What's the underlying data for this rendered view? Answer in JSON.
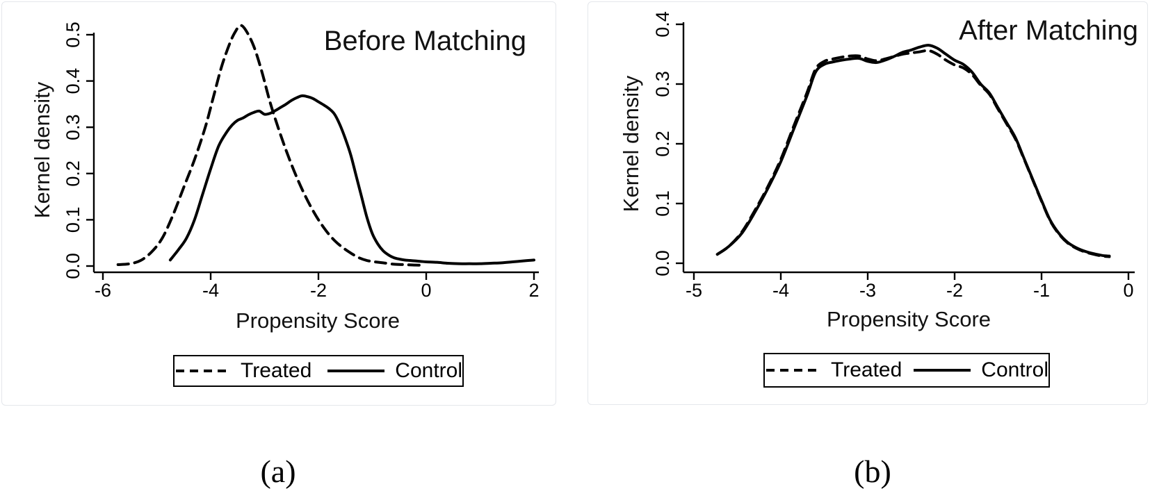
{
  "figure": {
    "captions": {
      "a": "(a)",
      "b": "(b)"
    }
  },
  "chart_data": [
    {
      "type": "line",
      "title": "Before Matching",
      "xlabel": "Propensity Score",
      "ylabel": "Kernel density",
      "xlim": [
        -6.17,
        2.09
      ],
      "ylim": [
        0,
        0.53
      ],
      "xticks": [
        -6,
        -4,
        -2,
        0,
        2
      ],
      "xticklabels": [
        "-6",
        "-4",
        "-2",
        "0",
        "2"
      ],
      "yticks": [
        0.0,
        0.1,
        0.2,
        0.3,
        0.4,
        0.5
      ],
      "yticklabels": [
        "0.0",
        "0.1",
        "0.2",
        "0.3",
        "0.4",
        "0.5"
      ],
      "grid": false,
      "legend": {
        "position": "bottom-center",
        "entries": [
          {
            "label": "Treated",
            "style": "dashed"
          },
          {
            "label": "Control",
            "style": "solid"
          }
        ]
      },
      "series": [
        {
          "name": "Treated",
          "style": "dashed",
          "x": [
            -5.72,
            -5.5,
            -5.3,
            -5.1,
            -4.9,
            -4.7,
            -4.5,
            -4.3,
            -4.1,
            -3.95,
            -3.8,
            -3.65,
            -3.55,
            -3.45,
            -3.35,
            -3.2,
            -3.05,
            -2.9,
            -2.75,
            -2.6,
            -2.45,
            -2.3,
            -2.15,
            -2.0,
            -1.85,
            -1.7,
            -1.55,
            -1.4,
            -1.25,
            -1.1,
            -0.95,
            -0.8,
            -0.6,
            -0.4,
            -0.2,
            -0.05
          ],
          "y": [
            0.003,
            0.005,
            0.012,
            0.03,
            0.06,
            0.11,
            0.17,
            0.23,
            0.3,
            0.365,
            0.43,
            0.48,
            0.505,
            0.52,
            0.51,
            0.475,
            0.42,
            0.355,
            0.3,
            0.25,
            0.205,
            0.165,
            0.13,
            0.1,
            0.075,
            0.055,
            0.04,
            0.028,
            0.018,
            0.012,
            0.009,
            0.007,
            0.004,
            0.003,
            0.002,
            0.002
          ]
        },
        {
          "name": "Control",
          "style": "solid",
          "x": [
            -4.75,
            -4.6,
            -4.45,
            -4.3,
            -4.15,
            -4.0,
            -3.85,
            -3.7,
            -3.6,
            -3.5,
            -3.4,
            -3.3,
            -3.2,
            -3.1,
            -3.0,
            -2.9,
            -2.8,
            -2.7,
            -2.6,
            -2.5,
            -2.4,
            -2.3,
            -2.2,
            -2.1,
            -2.0,
            -1.9,
            -1.8,
            -1.7,
            -1.6,
            -1.5,
            -1.4,
            -1.3,
            -1.2,
            -1.1,
            -1.0,
            -0.9,
            -0.8,
            -0.7,
            -0.6,
            -0.5,
            -0.4,
            -0.3,
            -0.2,
            -0.1,
            0.0,
            0.2,
            0.4,
            0.6,
            0.8,
            1.0,
            1.2,
            1.4,
            1.6,
            1.8,
            2.0
          ],
          "y": [
            0.013,
            0.035,
            0.06,
            0.1,
            0.155,
            0.21,
            0.26,
            0.29,
            0.305,
            0.315,
            0.32,
            0.327,
            0.332,
            0.335,
            0.328,
            0.33,
            0.336,
            0.343,
            0.35,
            0.358,
            0.364,
            0.368,
            0.366,
            0.362,
            0.355,
            0.348,
            0.34,
            0.328,
            0.305,
            0.275,
            0.24,
            0.195,
            0.15,
            0.105,
            0.07,
            0.048,
            0.033,
            0.024,
            0.018,
            0.015,
            0.013,
            0.012,
            0.011,
            0.01,
            0.009,
            0.008,
            0.006,
            0.005,
            0.005,
            0.005,
            0.006,
            0.007,
            0.009,
            0.011,
            0.013
          ]
        }
      ]
    },
    {
      "type": "line",
      "title": "After Matching",
      "xlabel": "Propensity Score",
      "ylabel": "Kernel density",
      "xlim": [
        -5.12,
        0.07
      ],
      "ylim": [
        0,
        0.4
      ],
      "xticks": [
        -5,
        -4,
        -3,
        -2,
        -1,
        0
      ],
      "xticklabels": [
        "-5",
        "-4",
        "-3",
        "-2",
        "-1",
        "0"
      ],
      "yticks": [
        0.0,
        0.1,
        0.2,
        0.3,
        0.4
      ],
      "yticklabels": [
        "0.0",
        "0.1",
        "0.2",
        "0.3",
        "0.4"
      ],
      "grid": false,
      "legend": {
        "position": "bottom-center",
        "entries": [
          {
            "label": "Treated",
            "style": "dashed"
          },
          {
            "label": "Control",
            "style": "solid"
          }
        ]
      },
      "series": [
        {
          "name": "Treated",
          "style": "dashed",
          "x": [
            -4.73,
            -4.6,
            -4.45,
            -4.3,
            -4.15,
            -4.0,
            -3.85,
            -3.7,
            -3.6,
            -3.5,
            -3.4,
            -3.3,
            -3.2,
            -3.1,
            -3.0,
            -2.9,
            -2.8,
            -2.7,
            -2.6,
            -2.5,
            -2.4,
            -2.3,
            -2.2,
            -2.1,
            -2.0,
            -1.9,
            -1.8,
            -1.7,
            -1.6,
            -1.5,
            -1.4,
            -1.3,
            -1.2,
            -1.1,
            -1.0,
            -0.9,
            -0.8,
            -0.7,
            -0.6,
            -0.5,
            -0.4,
            -0.3,
            -0.22
          ],
          "y": [
            0.015,
            0.028,
            0.052,
            0.088,
            0.128,
            0.174,
            0.23,
            0.285,
            0.325,
            0.338,
            0.342,
            0.345,
            0.347,
            0.347,
            0.342,
            0.339,
            0.342,
            0.346,
            0.35,
            0.352,
            0.354,
            0.356,
            0.35,
            0.34,
            0.332,
            0.327,
            0.316,
            0.298,
            0.283,
            0.258,
            0.233,
            0.208,
            0.174,
            0.139,
            0.104,
            0.071,
            0.049,
            0.034,
            0.025,
            0.019,
            0.015,
            0.012,
            0.011
          ]
        },
        {
          "name": "Control",
          "style": "solid",
          "x": [
            -4.73,
            -4.6,
            -4.45,
            -4.3,
            -4.15,
            -4.0,
            -3.85,
            -3.7,
            -3.6,
            -3.5,
            -3.4,
            -3.3,
            -3.2,
            -3.1,
            -3.0,
            -2.9,
            -2.8,
            -2.7,
            -2.6,
            -2.5,
            -2.4,
            -2.3,
            -2.2,
            -2.1,
            -2.0,
            -1.9,
            -1.8,
            -1.7,
            -1.6,
            -1.5,
            -1.4,
            -1.3,
            -1.2,
            -1.1,
            -1.0,
            -0.9,
            -0.8,
            -0.7,
            -0.6,
            -0.5,
            -0.4,
            -0.3,
            -0.22
          ],
          "y": [
            0.015,
            0.028,
            0.05,
            0.085,
            0.125,
            0.17,
            0.225,
            0.28,
            0.32,
            0.333,
            0.337,
            0.34,
            0.342,
            0.343,
            0.338,
            0.336,
            0.34,
            0.346,
            0.353,
            0.357,
            0.362,
            0.365,
            0.36,
            0.35,
            0.34,
            0.333,
            0.32,
            0.3,
            0.285,
            0.26,
            0.235,
            0.21,
            0.175,
            0.14,
            0.105,
            0.072,
            0.05,
            0.035,
            0.026,
            0.02,
            0.016,
            0.013,
            0.012
          ]
        }
      ]
    }
  ]
}
